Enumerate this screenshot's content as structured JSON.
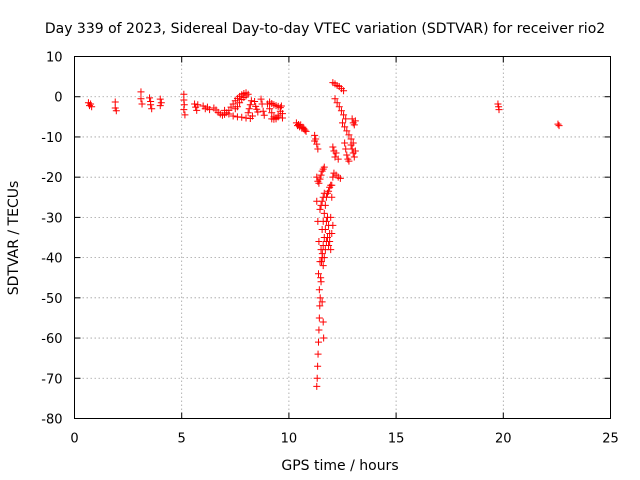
{
  "chart_data": {
    "type": "scatter",
    "title": "Day 339 of 2023, Sidereal Day-to-day VTEC variation (SDTVAR) for receiver rio2",
    "xlabel": "GPS time / hours",
    "ylabel": "SDTVAR / TECUs",
    "xlim": [
      0,
      25
    ],
    "ylim": [
      -80,
      10
    ],
    "xticks": [
      0,
      5,
      10,
      15,
      20,
      25
    ],
    "yticks": [
      10,
      0,
      -10,
      -20,
      -30,
      -40,
      -50,
      -60,
      -70,
      -80
    ],
    "grid": true,
    "marker": "+",
    "color": "#ff0000",
    "series": [
      {
        "name": "SDTVAR",
        "points": [
          [
            0.65,
            -1.5
          ],
          [
            0.7,
            -2.2
          ],
          [
            0.75,
            -1.8
          ],
          [
            0.8,
            -2.5
          ],
          [
            1.9,
            -1.3
          ],
          [
            1.9,
            -2.8
          ],
          [
            1.95,
            -3.5
          ],
          [
            3.1,
            1.2
          ],
          [
            3.1,
            -0.5
          ],
          [
            3.15,
            -1.8
          ],
          [
            3.5,
            -0.3
          ],
          [
            3.55,
            -2.0
          ],
          [
            3.6,
            -3.0
          ],
          [
            3.55,
            -1.2
          ],
          [
            4.0,
            -0.6
          ],
          [
            4.05,
            -1.5
          ],
          [
            4.0,
            -2.2
          ],
          [
            5.1,
            0.6
          ],
          [
            5.1,
            -0.8
          ],
          [
            5.12,
            -2.0
          ],
          [
            5.1,
            -3.2
          ],
          [
            5.15,
            -4.5
          ],
          [
            5.6,
            -1.8
          ],
          [
            5.65,
            -2.6
          ],
          [
            5.7,
            -3.4
          ],
          [
            5.75,
            -2.0
          ],
          [
            6.0,
            -2.3
          ],
          [
            6.1,
            -3.0
          ],
          [
            6.2,
            -2.6
          ],
          [
            6.3,
            -3.2
          ],
          [
            6.5,
            -2.8
          ],
          [
            6.6,
            -3.3
          ],
          [
            6.7,
            -3.9
          ],
          [
            6.8,
            -4.3
          ],
          [
            6.9,
            -4.6
          ],
          [
            7.0,
            -4.4
          ],
          [
            7.1,
            -4.0
          ],
          [
            7.2,
            -3.4
          ],
          [
            7.3,
            -2.6
          ],
          [
            7.4,
            -1.8
          ],
          [
            7.5,
            -1.0
          ],
          [
            7.6,
            -0.4
          ],
          [
            7.7,
            0.1
          ],
          [
            7.8,
            0.5
          ],
          [
            7.9,
            0.8
          ],
          [
            8.0,
            1.0
          ],
          [
            8.1,
            0.6
          ],
          [
            7.0,
            -3.4
          ],
          [
            7.2,
            -4.3
          ],
          [
            7.4,
            -4.8
          ],
          [
            7.6,
            -5.0
          ],
          [
            7.8,
            -5.1
          ],
          [
            8.0,
            -5.3
          ],
          [
            8.2,
            -5.4
          ],
          [
            7.5,
            -3.0
          ],
          [
            7.6,
            -2.5
          ],
          [
            7.7,
            -1.5
          ],
          [
            7.8,
            -0.7
          ],
          [
            7.9,
            -0.2
          ],
          [
            8.0,
            0.2
          ],
          [
            8.1,
            -4.0
          ],
          [
            8.15,
            -3.0
          ],
          [
            8.2,
            -2.0
          ],
          [
            8.25,
            -1.0
          ],
          [
            8.3,
            -4.8
          ],
          [
            8.4,
            -1.2
          ],
          [
            8.45,
            -2.4
          ],
          [
            8.5,
            -3.1
          ],
          [
            8.55,
            -3.8
          ],
          [
            8.7,
            -0.6
          ],
          [
            8.75,
            -1.8
          ],
          [
            8.8,
            -3.6
          ],
          [
            8.85,
            -4.6
          ],
          [
            9.0,
            -1.8
          ],
          [
            9.1,
            -3.0
          ],
          [
            9.2,
            -4.0
          ],
          [
            9.3,
            -5.0
          ],
          [
            9.4,
            -5.3
          ],
          [
            9.5,
            -5.0
          ],
          [
            9.1,
            -1.3
          ],
          [
            9.2,
            -1.7
          ],
          [
            9.3,
            -2.0
          ],
          [
            9.4,
            -2.2
          ],
          [
            9.5,
            -2.4
          ],
          [
            9.6,
            -2.7
          ],
          [
            9.2,
            -5.5
          ],
          [
            9.3,
            -5.6
          ],
          [
            9.4,
            -5.5
          ],
          [
            9.5,
            -4.6
          ],
          [
            9.6,
            -3.6
          ],
          [
            9.65,
            -2.3
          ],
          [
            9.7,
            -4.2
          ],
          [
            9.7,
            -5.3
          ],
          [
            10.35,
            -6.5
          ],
          [
            10.4,
            -7.2
          ],
          [
            10.5,
            -7.5
          ],
          [
            10.6,
            -7.8
          ],
          [
            10.7,
            -8.0
          ],
          [
            10.45,
            -6.9
          ],
          [
            10.55,
            -7.0
          ],
          [
            10.65,
            -7.6
          ],
          [
            10.75,
            -8.3
          ],
          [
            10.8,
            -8.6
          ],
          [
            11.2,
            -9.6
          ],
          [
            11.25,
            -10.5
          ],
          [
            11.3,
            -11.8
          ],
          [
            11.35,
            -13.0
          ],
          [
            11.2,
            -11.0
          ],
          [
            11.3,
            -20.0
          ],
          [
            11.35,
            -21.0
          ],
          [
            11.4,
            -21.5
          ],
          [
            11.45,
            -20.5
          ],
          [
            11.5,
            -19.5
          ],
          [
            11.55,
            -18.5
          ],
          [
            11.6,
            -18.0
          ],
          [
            11.65,
            -17.5
          ],
          [
            11.3,
            -26
          ],
          [
            11.35,
            -31
          ],
          [
            11.4,
            -36
          ],
          [
            11.45,
            -41
          ],
          [
            11.5,
            -46
          ],
          [
            11.55,
            -51
          ],
          [
            11.6,
            -56
          ],
          [
            11.62,
            -60
          ],
          [
            11.3,
            -72
          ],
          [
            11.32,
            -70
          ],
          [
            11.34,
            -67
          ],
          [
            11.36,
            -64
          ],
          [
            11.38,
            -61
          ],
          [
            11.4,
            -58
          ],
          [
            11.42,
            -55
          ],
          [
            11.38,
            -44
          ],
          [
            11.42,
            -48
          ],
          [
            11.44,
            -52
          ],
          [
            11.46,
            -50
          ],
          [
            11.48,
            -45
          ],
          [
            11.52,
            -41
          ],
          [
            11.56,
            -39
          ],
          [
            11.5,
            -38
          ],
          [
            11.55,
            -33
          ],
          [
            11.6,
            -31
          ],
          [
            11.65,
            -29
          ],
          [
            11.7,
            -27
          ],
          [
            11.75,
            -25
          ],
          [
            11.8,
            -24
          ],
          [
            11.85,
            -23.5
          ],
          [
            11.9,
            -22.5
          ],
          [
            11.95,
            -22
          ],
          [
            11.55,
            -40
          ],
          [
            11.6,
            -37
          ],
          [
            11.65,
            -35
          ],
          [
            11.7,
            -33
          ],
          [
            11.75,
            -31
          ],
          [
            11.8,
            -30
          ],
          [
            11.85,
            -32
          ],
          [
            11.9,
            -34
          ],
          [
            11.6,
            -42
          ],
          [
            11.65,
            -40
          ],
          [
            11.7,
            -38
          ],
          [
            11.75,
            -36
          ],
          [
            11.8,
            -35
          ],
          [
            11.85,
            -37
          ],
          [
            11.45,
            -28
          ],
          [
            11.5,
            -27
          ],
          [
            11.55,
            -26
          ],
          [
            11.6,
            -25
          ],
          [
            11.65,
            -24
          ],
          [
            11.9,
            -36
          ],
          [
            11.95,
            -38
          ],
          [
            12.0,
            -34
          ],
          [
            12.05,
            -32
          ],
          [
            11.95,
            -30
          ],
          [
            12.0,
            -25
          ],
          [
            12.0,
            -22
          ],
          [
            12.05,
            -20
          ],
          [
            12.1,
            -19
          ],
          [
            12.2,
            -19.5
          ],
          [
            12.3,
            -20
          ],
          [
            12.4,
            -20.3
          ],
          [
            12.05,
            3.5
          ],
          [
            12.15,
            3.2
          ],
          [
            12.25,
            2.8
          ],
          [
            12.35,
            2.5
          ],
          [
            12.45,
            2.0
          ],
          [
            12.55,
            1.5
          ],
          [
            12.15,
            -0.5
          ],
          [
            12.25,
            -1.5
          ],
          [
            12.35,
            -2.5
          ],
          [
            12.45,
            -3.5
          ],
          [
            12.55,
            -4.5
          ],
          [
            12.65,
            -5.5
          ],
          [
            12.5,
            -6.5
          ],
          [
            12.6,
            -7.5
          ],
          [
            12.7,
            -8.5
          ],
          [
            12.8,
            -9.5
          ],
          [
            12.9,
            -10.5
          ],
          [
            12.6,
            -11.5
          ],
          [
            12.65,
            -13
          ],
          [
            12.7,
            -14.5
          ],
          [
            12.75,
            -15.5
          ],
          [
            12.8,
            -16
          ],
          [
            12.95,
            -5.5
          ],
          [
            13.0,
            -6.5
          ],
          [
            13.05,
            -7.0
          ],
          [
            13.1,
            -6.0
          ],
          [
            12.9,
            -12.0
          ],
          [
            12.95,
            -13.0
          ],
          [
            13.0,
            -14.0
          ],
          [
            13.05,
            -15.0
          ],
          [
            13.1,
            -13.5
          ],
          [
            13.0,
            -11.5
          ],
          [
            12.05,
            -12.5
          ],
          [
            12.1,
            -13.5
          ],
          [
            12.15,
            -15.0
          ],
          [
            12.2,
            -14.0
          ],
          [
            12.3,
            -15.5
          ],
          [
            19.75,
            -1.8
          ],
          [
            19.78,
            -2.5
          ],
          [
            19.8,
            -3.2
          ],
          [
            22.55,
            -6.8
          ],
          [
            22.6,
            -7.2
          ]
        ]
      }
    ]
  }
}
